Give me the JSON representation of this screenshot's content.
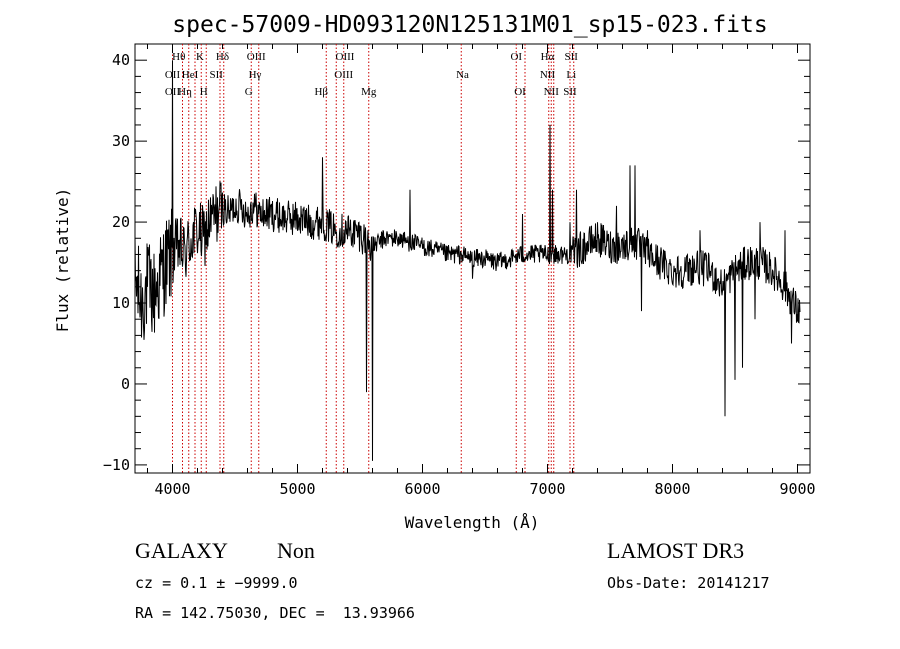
{
  "chart_data": {
    "type": "line",
    "title": "spec-57009-HD093120N125131M01_sp15-023.fits",
    "xlabel": "Wavelength (Å)",
    "ylabel": "Flux (relative)",
    "xlim": [
      3700,
      9100
    ],
    "ylim": [
      -11,
      42
    ],
    "x_ticks": [
      4000,
      5000,
      6000,
      7000,
      8000,
      9000
    ],
    "y_ticks": [
      -10,
      0,
      10,
      20,
      30,
      40
    ],
    "x_tick_labels": [
      "4000",
      "5000",
      "6000",
      "7000",
      "8000",
      "9000"
    ],
    "y_tick_labels": [
      "−10",
      "0",
      "10",
      "20",
      "30",
      "40"
    ],
    "spectrum_anchors": [
      [
        3700,
        13
      ],
      [
        3750,
        10
      ],
      [
        3800,
        12
      ],
      [
        3850,
        11
      ],
      [
        3900,
        13
      ],
      [
        3950,
        15
      ],
      [
        4000,
        16
      ],
      [
        4050,
        17
      ],
      [
        4100,
        16
      ],
      [
        4150,
        18
      ],
      [
        4200,
        19
      ],
      [
        4250,
        18
      ],
      [
        4300,
        20
      ],
      [
        4350,
        21
      ],
      [
        4400,
        22
      ],
      [
        4450,
        21
      ],
      [
        4500,
        22
      ],
      [
        4550,
        22
      ],
      [
        4600,
        21
      ],
      [
        4650,
        22
      ],
      [
        4700,
        21
      ],
      [
        4800,
        21
      ],
      [
        4900,
        20.5
      ],
      [
        5000,
        20.5
      ],
      [
        5100,
        20
      ],
      [
        5200,
        20
      ],
      [
        5300,
        19
      ],
      [
        5400,
        19
      ],
      [
        5500,
        18.5
      ],
      [
        5600,
        17
      ],
      [
        5700,
        18
      ],
      [
        5800,
        18
      ],
      [
        5900,
        17.5
      ],
      [
        6000,
        17
      ],
      [
        6100,
        16.5
      ],
      [
        6200,
        16
      ],
      [
        6300,
        16
      ],
      [
        6400,
        15.5
      ],
      [
        6500,
        15.5
      ],
      [
        6600,
        15
      ],
      [
        6700,
        15.5
      ],
      [
        6800,
        16
      ],
      [
        6900,
        16
      ],
      [
        7000,
        16
      ],
      [
        7100,
        16
      ],
      [
        7200,
        16
      ],
      [
        7300,
        17
      ],
      [
        7400,
        18
      ],
      [
        7500,
        17
      ],
      [
        7600,
        17
      ],
      [
        7700,
        17.5
      ],
      [
        7800,
        16
      ],
      [
        7900,
        15
      ],
      [
        8000,
        14
      ],
      [
        8100,
        14
      ],
      [
        8200,
        14.5
      ],
      [
        8300,
        14
      ],
      [
        8400,
        12
      ],
      [
        8500,
        14
      ],
      [
        8600,
        15
      ],
      [
        8700,
        15
      ],
      [
        8800,
        14
      ],
      [
        8900,
        12
      ],
      [
        9000,
        9
      ]
    ],
    "spectrum_spikes": [
      [
        4000,
        40
      ],
      [
        5600,
        -9.5
      ],
      [
        5550,
        -1
      ],
      [
        5900,
        24
      ],
      [
        5200,
        28
      ],
      [
        6400,
        13
      ],
      [
        6800,
        21
      ],
      [
        7020,
        32
      ],
      [
        7040,
        24
      ],
      [
        7180,
        20
      ],
      [
        7230,
        24
      ],
      [
        7660,
        27
      ],
      [
        7700,
        27
      ],
      [
        7550,
        22
      ],
      [
        7750,
        9
      ],
      [
        7800,
        19
      ],
      [
        8220,
        19
      ],
      [
        8420,
        -4
      ],
      [
        8500,
        0.5
      ],
      [
        8560,
        2
      ],
      [
        8660,
        8
      ],
      [
        8700,
        20
      ],
      [
        8900,
        19
      ],
      [
        8950,
        5
      ]
    ],
    "emission_lines": [
      {
        "name": "OII",
        "wavelength": 3727
      },
      {
        "name": "Hθ",
        "wavelength": 3798
      },
      {
        "name": "Hη",
        "wavelength": 3835
      },
      {
        "name": "HeI",
        "wavelength": 3889
      },
      {
        "name": "K",
        "wavelength": 3934
      },
      {
        "name": "H",
        "wavelength": 3969
      },
      {
        "name": "Hδ",
        "wavelength": 4102
      },
      {
        "name": "SII",
        "wavelength": 4072
      },
      {
        "name": "OIII",
        "wavelength": 4363
      },
      {
        "name": "Hγ",
        "wavelength": 4340
      },
      {
        "name": "G",
        "wavelength": 4304
      },
      {
        "name": "Hβ",
        "wavelength": 4861
      },
      {
        "name": "OIII",
        "wavelength": 4959
      },
      {
        "name": "OIII",
        "wavelength": 5007
      },
      {
        "name": "Mg",
        "wavelength": 5175
      },
      {
        "name": "Na",
        "wavelength": 5893
      },
      {
        "name": "OI",
        "wavelength": 6300
      },
      {
        "name": "OI",
        "wavelength": 6364
      },
      {
        "name": "Hα",
        "wavelength": 6563
      },
      {
        "name": "NII",
        "wavelength": 6548
      },
      {
        "name": "NII",
        "wavelength": 6583
      },
      {
        "name": "SII",
        "wavelength": 6716
      },
      {
        "name": "SII",
        "wavelength": 6731
      },
      {
        "name": "Li",
        "wavelength": 6708
      }
    ],
    "line_label_groups": [
      {
        "text": "Hθ",
        "row": 0,
        "at": 4050
      },
      {
        "text": "K",
        "at": 4220,
        "row": 0
      },
      {
        "text": "Hδ",
        "at": 4400,
        "row": 0
      },
      {
        "text": "OIII",
        "at": 4670,
        "row": 0
      },
      {
        "text": "OIII",
        "at": 5380,
        "row": 0
      },
      {
        "text": "OI",
        "at": 6750,
        "row": 0
      },
      {
        "text": "Hα",
        "at": 7000,
        "row": 0
      },
      {
        "text": "SII",
        "at": 7190,
        "row": 0
      },
      {
        "text": "OII",
        "at": 4000,
        "row": 1
      },
      {
        "text": "HeI",
        "at": 4140,
        "row": 1
      },
      {
        "text": "SII",
        "at": 4350,
        "row": 1
      },
      {
        "text": "Hγ",
        "at": 4660,
        "row": 1
      },
      {
        "text": "OIII",
        "at": 5370,
        "row": 1
      },
      {
        "text": "Na",
        "at": 6320,
        "row": 1
      },
      {
        "text": "NII",
        "at": 7000,
        "row": 1
      },
      {
        "text": "Li",
        "at": 7190,
        "row": 1
      },
      {
        "text": "OII",
        "at": 4000,
        "row": 2
      },
      {
        "text": "Hη",
        "at": 4100,
        "row": 2
      },
      {
        "text": "H",
        "at": 4250,
        "row": 2
      },
      {
        "text": "G",
        "at": 4610,
        "row": 2
      },
      {
        "text": "Hβ",
        "at": 5190,
        "row": 2
      },
      {
        "text": "Mg",
        "at": 5570,
        "row": 2
      },
      {
        "text": "OI",
        "at": 6780,
        "row": 2
      },
      {
        "text": "NII",
        "at": 7030,
        "row": 2
      },
      {
        "text": "SII",
        "at": 7180,
        "row": 2
      }
    ],
    "marker_wavelengths": [
      4000,
      4080,
      4130,
      4180,
      4230,
      4270,
      4380,
      4410,
      4630,
      4690,
      5230,
      5310,
      5370,
      5570,
      6310,
      6750,
      6820,
      7010,
      7030,
      7050,
      7180,
      7210
    ],
    "colors": {
      "spectrum": "#000000",
      "markers": "#cc0000",
      "axes": "#000000"
    }
  },
  "footer": {
    "classification": "GALAXY",
    "subclass": "Non",
    "survey": "LAMOST DR3",
    "redshift": "cz = 0.1 ± −9999.0",
    "obs_date": "Obs-Date: 20141217",
    "coords": "RA = 142.75030, DEC =  13.93966"
  }
}
